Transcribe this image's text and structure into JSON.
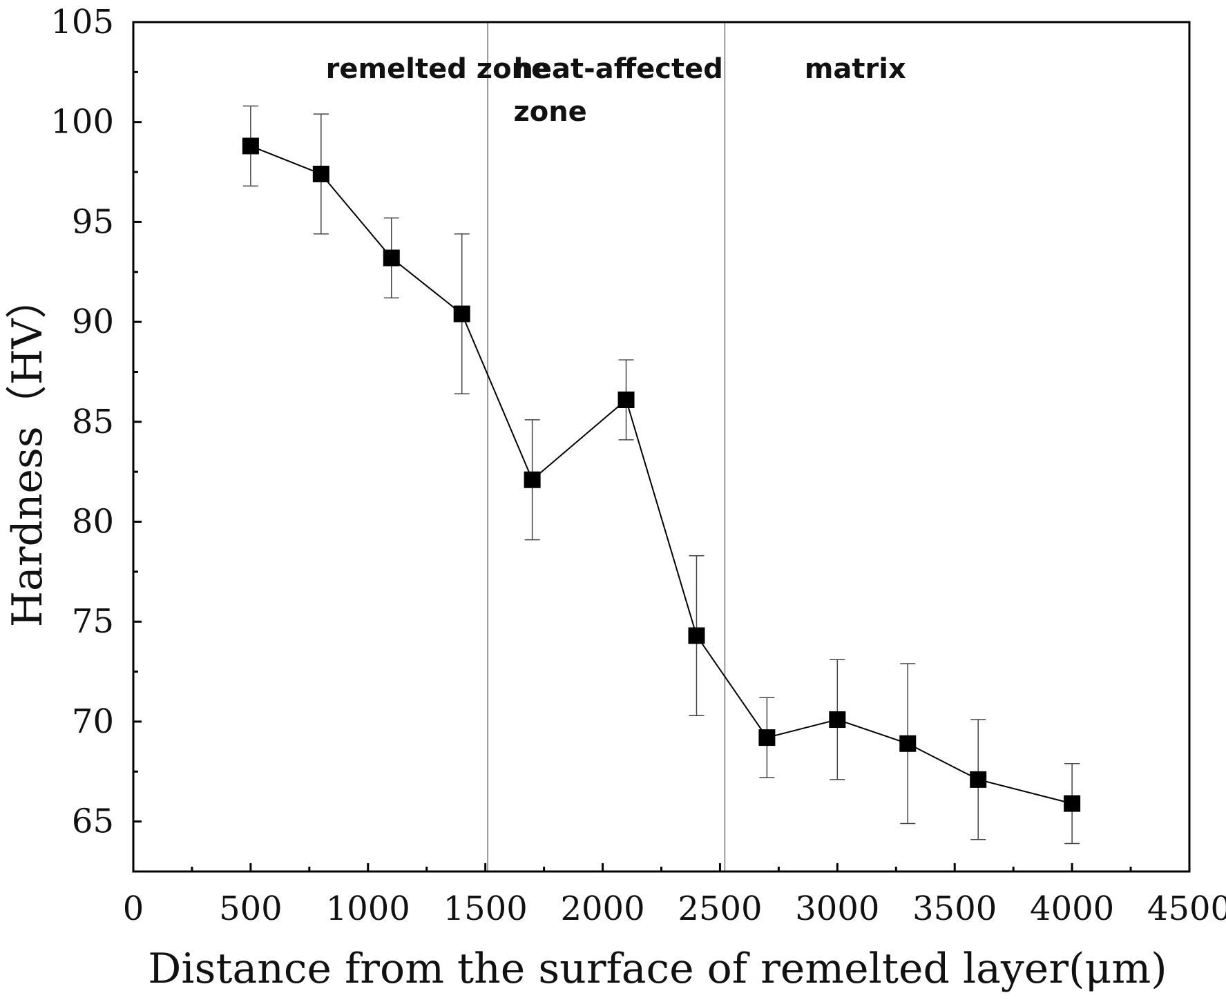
{
  "chart_data": {
    "type": "scatter",
    "title": "",
    "xlabel": "Distance from the surface of remelted layer(μm)",
    "ylabel": "Hardness（HV）",
    "xlim": [
      0,
      4500
    ],
    "ylim": [
      62.5,
      105
    ],
    "xticks": [
      0,
      500,
      1000,
      1500,
      2000,
      2500,
      3000,
      3500,
      4000,
      4500
    ],
    "yticks": [
      65,
      70,
      75,
      80,
      85,
      90,
      95,
      100,
      105
    ],
    "grid": false,
    "legend": "none",
    "marker": "square",
    "line_color": "#000000",
    "marker_color": "#000000",
    "zone_line_color": "#999999",
    "zone_boundaries": [
      1510,
      2520
    ],
    "zones": [
      {
        "lines": [
          "remelted zone"
        ],
        "x": 820
      },
      {
        "lines": [
          "heat-affected",
          "zone"
        ],
        "x": 1620
      },
      {
        "lines": [
          "matrix"
        ],
        "x": 2860
      }
    ],
    "series": [
      {
        "name": "Hardness",
        "x": [
          500,
          800,
          1100,
          1400,
          1700,
          2100,
          2400,
          2700,
          3000,
          3300,
          3600,
          4000
        ],
        "y": [
          98.8,
          97.4,
          93.2,
          90.4,
          82.1,
          86.1,
          74.3,
          69.2,
          70.1,
          68.9,
          67.1,
          65.9
        ],
        "err_upper": [
          100.8,
          100.4,
          95.2,
          94.4,
          85.1,
          88.1,
          78.3,
          71.2,
          73.1,
          72.9,
          70.1,
          67.9
        ],
        "err_lower": [
          96.8,
          94.4,
          91.2,
          86.4,
          79.1,
          84.1,
          70.3,
          67.2,
          67.1,
          64.9,
          64.1,
          63.9
        ]
      }
    ]
  }
}
